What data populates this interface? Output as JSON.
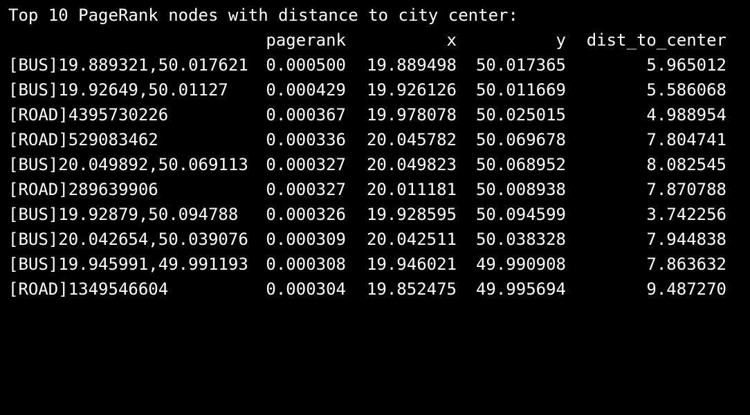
{
  "terminal": {
    "title": "Top 10 PageRank nodes with distance to city center:",
    "columns": [
      "pagerank",
      "x",
      "y",
      "dist_to_center"
    ],
    "rows": [
      {
        "index": "[BUS]19.889321,50.017621",
        "pagerank": "0.000500",
        "x": "19.889498",
        "y": "50.017365",
        "dist": "5.965012"
      },
      {
        "index": "[BUS]19.92649,50.01127",
        "pagerank": "0.000429",
        "x": "19.926126",
        "y": "50.011669",
        "dist": "5.586068"
      },
      {
        "index": "[ROAD]4395730226",
        "pagerank": "0.000367",
        "x": "19.978078",
        "y": "50.025015",
        "dist": "4.988954"
      },
      {
        "index": "[ROAD]529083462",
        "pagerank": "0.000336",
        "x": "20.045782",
        "y": "50.069678",
        "dist": "7.804741"
      },
      {
        "index": "[BUS]20.049892,50.069113",
        "pagerank": "0.000327",
        "x": "20.049823",
        "y": "50.068952",
        "dist": "8.082545"
      },
      {
        "index": "[ROAD]289639906",
        "pagerank": "0.000327",
        "x": "20.011181",
        "y": "50.008938",
        "dist": "7.870788"
      },
      {
        "index": "[BUS]19.92879,50.094788",
        "pagerank": "0.000326",
        "x": "19.928595",
        "y": "50.094599",
        "dist": "3.742256"
      },
      {
        "index": "[BUS]20.042654,50.039076",
        "pagerank": "0.000309",
        "x": "20.042511",
        "y": "50.038328",
        "dist": "7.944838"
      },
      {
        "index": "[BUS]19.945991,49.991193",
        "pagerank": "0.000308",
        "x": "19.946021",
        "y": "49.990908",
        "dist": "7.863632"
      },
      {
        "index": "[ROAD]1349546604",
        "pagerank": "0.000304",
        "x": "19.852475",
        "y": "49.995694",
        "dist": "9.487270"
      }
    ]
  },
  "colors": {
    "background": "#000000",
    "text": "#ffffff"
  }
}
